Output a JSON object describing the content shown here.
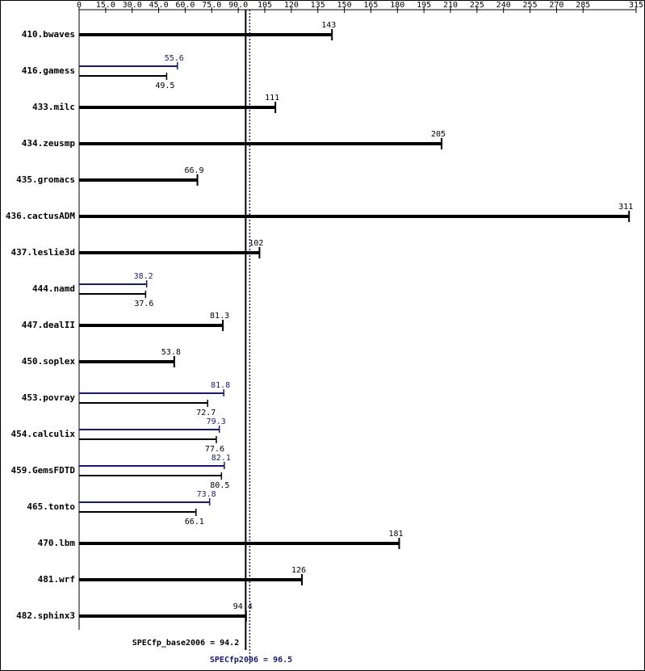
{
  "chart_data": {
    "type": "bar",
    "categories": [
      "410.bwaves",
      "416.gamess",
      "433.milc",
      "434.zeusmp",
      "435.gromacs",
      "436.cactusADM",
      "437.leslie3d",
      "444.namd",
      "447.dealII",
      "450.soplex",
      "453.povray",
      "454.calculix",
      "459.GemsFDTD",
      "465.tonto",
      "470.lbm",
      "481.wrf",
      "482.sphinx3"
    ],
    "series": [
      {
        "color": "#000000",
        "values": [
          143,
          49.5,
          111,
          205,
          66.9,
          311,
          102,
          37.6,
          81.3,
          53.8,
          72.7,
          77.6,
          80.5,
          66.1,
          181,
          126,
          94.4
        ]
      },
      {
        "color": "#191970",
        "values": [
          null,
          55.6,
          null,
          null,
          null,
          null,
          null,
          38.2,
          null,
          null,
          81.8,
          79.3,
          82.1,
          73.8,
          null,
          null,
          null
        ]
      }
    ],
    "xlim": [
      0,
      315
    ],
    "xticks": [
      0,
      {
        "value": 15,
        "label": "15.0"
      },
      {
        "value": 30,
        "label": "30.0"
      },
      {
        "value": 45,
        "label": "45.0"
      },
      {
        "value": 60,
        "label": "60.0"
      },
      {
        "value": 75,
        "label": "75.0"
      },
      {
        "value": 90,
        "label": "90.0"
      },
      105,
      120,
      135,
      150,
      165,
      180,
      195,
      210,
      225,
      240,
      255,
      270,
      285,
      315
    ],
    "annotations": [
      {
        "label": "SPECfp_base2006 = 94.2",
        "value": 94.2,
        "color": "#000000"
      },
      {
        "label": "SPECfp2006 = 96.5",
        "value": 96.5,
        "color": "#191970"
      }
    ]
  }
}
